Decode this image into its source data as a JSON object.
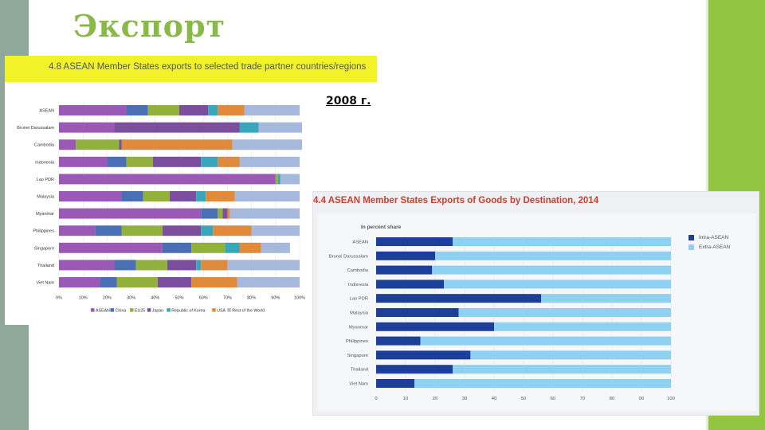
{
  "slide": {
    "title": "Экспорт",
    "year_label": "2008 г.",
    "colors": {
      "left_bar": "#8fa89a",
      "right_strip": "#92c642",
      "title": "#8ab94a"
    }
  },
  "chart_data": [
    {
      "type": "bar",
      "orientation": "horizontal",
      "stacked": true,
      "title": "4.8 ASEAN Member States exports to selected trade partner countries/regions",
      "categories": [
        "ASEAN",
        "Brunei Darussalam",
        "Cambodia",
        "Indonesia",
        "Lao PDR",
        "Malaysia",
        "Myanmar",
        "Philippines",
        "Singapore",
        "Thailand",
        "Viet Nam"
      ],
      "series": [
        {
          "name": "ASEAN",
          "color": "#9b59b6",
          "values": [
            28,
            23,
            7,
            20,
            90,
            26,
            59,
            15,
            43,
            23,
            17
          ]
        },
        {
          "name": "China",
          "color": "#4a6fb5",
          "values": [
            9,
            0,
            0,
            8,
            0,
            9,
            7,
            11,
            12,
            9,
            7
          ]
        },
        {
          "name": "EU25",
          "color": "#92b13c",
          "values": [
            13,
            0,
            18,
            11,
            1,
            11,
            2,
            17,
            14,
            13,
            17
          ]
        },
        {
          "name": "Japan",
          "color": "#7b4f9d",
          "values": [
            12,
            52,
            1,
            20,
            0,
            11,
            2,
            16,
            0,
            12,
            14
          ]
        },
        {
          "name": "Republic of Korea",
          "color": "#3aa6b9",
          "values": [
            4,
            8,
            0,
            7,
            1,
            4,
            0,
            5,
            6,
            2,
            0
          ]
        },
        {
          "name": "USA",
          "color": "#e08a3c",
          "values": [
            11,
            0,
            46,
            9,
            0,
            12,
            1,
            16,
            9,
            11,
            19
          ]
        },
        {
          "name": "Rest of the World",
          "color": "#a6b8dc",
          "values": [
            23,
            18,
            29,
            25,
            8,
            27,
            29,
            20,
            12,
            30,
            26
          ]
        }
      ],
      "xlim": [
        0,
        100
      ],
      "xticks": [
        "0%",
        "10%",
        "20%",
        "30%",
        "40%",
        "50%",
        "60%",
        "70%",
        "80%",
        "90%",
        "100%"
      ],
      "legend": "bottom"
    },
    {
      "type": "bar",
      "orientation": "horizontal",
      "stacked": true,
      "title": "4.4 ASEAN Member States Exports of Goods by Destination, 2014",
      "unit_label": "In percent share",
      "categories": [
        "ASEAN",
        "Brunei Darussalam",
        "Cambodia",
        "Indonesia",
        "Lao PDR",
        "Malaysia",
        "Myanmar",
        "Philippines",
        "Singapore",
        "Thailand",
        "Viet Nam"
      ],
      "series": [
        {
          "name": "Intra-ASEAN",
          "color": "#1c3f9a",
          "values": [
            26,
            20,
            19,
            23,
            56,
            28,
            40,
            15,
            32,
            26,
            13
          ]
        },
        {
          "name": "Extra-ASEAN",
          "color": "#8fd1f0",
          "values": [
            74,
            80,
            81,
            77,
            44,
            72,
            60,
            85,
            68,
            74,
            87
          ]
        }
      ],
      "xlim": [
        0,
        100
      ],
      "xticks": [
        "0",
        "10",
        "20",
        "30",
        "40",
        "50",
        "60",
        "70",
        "80",
        "90",
        "100"
      ],
      "legend": "right"
    }
  ]
}
